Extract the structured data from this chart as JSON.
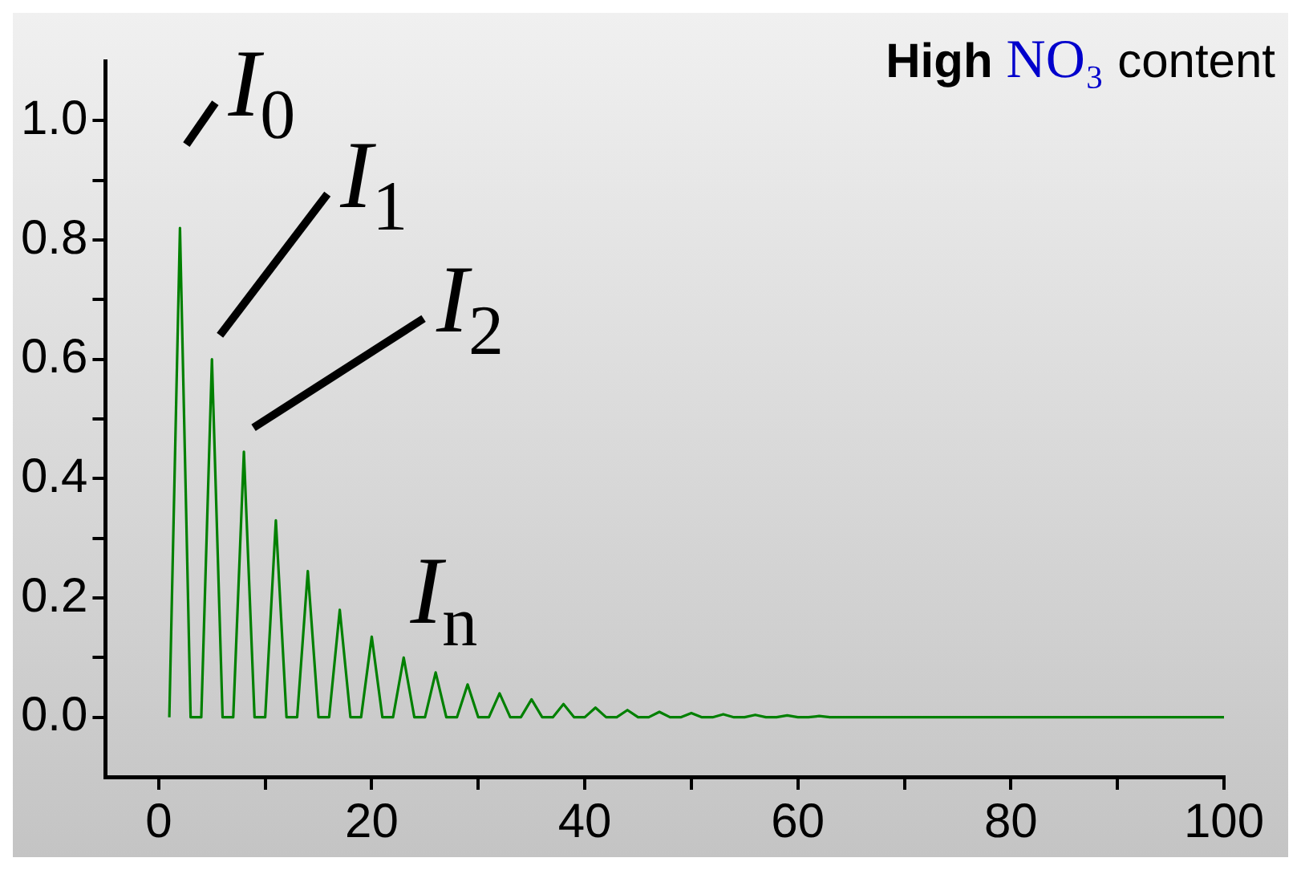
{
  "chart_data": {
    "type": "line",
    "title": "High NO₃ content",
    "annotations": [
      {
        "text": "I$_{0}$",
        "x": 2,
        "y": 0.82
      },
      {
        "text": "I$_{1}$",
        "x": 5,
        "y": 0.6
      },
      {
        "text": "I$_{2}$",
        "x": 8,
        "y": 0.445
      },
      "I$_{n}$"
    ],
    "x": [
      1,
      2,
      3,
      4,
      5,
      6,
      7,
      8,
      9,
      10,
      11,
      12,
      13,
      14,
      15,
      16,
      17,
      18,
      19,
      20,
      21,
      22,
      23,
      24,
      25,
      26,
      27,
      28,
      29,
      30,
      31,
      32,
      33,
      34,
      35,
      36,
      37,
      38,
      39,
      40,
      41,
      42,
      43,
      44,
      45,
      46,
      47,
      48,
      49,
      50,
      51,
      52,
      53,
      54,
      55,
      56,
      57,
      58,
      59,
      60,
      61,
      62,
      63,
      100
    ],
    "series": [
      {
        "color": "#008000",
        "values": [
          0,
          0.82,
          0,
          0,
          0.6,
          0,
          0,
          0.445,
          0,
          0,
          0.33,
          0,
          0,
          0.245,
          0,
          0,
          0.18,
          0,
          0,
          0.135,
          0,
          0,
          0.1,
          0,
          0,
          0.075,
          0,
          0,
          0.055,
          0,
          0,
          0.04,
          0,
          0,
          0.03,
          0,
          0,
          0.022,
          0,
          0,
          0.016,
          0,
          0,
          0.012,
          0,
          0,
          0.009,
          0,
          0,
          0.007,
          0,
          0,
          0.005,
          0,
          0,
          0.004,
          0,
          0,
          0.003,
          0,
          0,
          0.002,
          0,
          0
        ]
      }
    ],
    "xlim": [
      -5,
      100
    ],
    "xticks": [
      0,
      {
        "value": 10,
        "label": null
      },
      20,
      {
        "value": 30,
        "label": null
      },
      40,
      {
        "value": 50,
        "label": null
      },
      60,
      {
        "value": 70,
        "label": null
      },
      80,
      {
        "value": 90,
        "label": null
      },
      100
    ],
    "ylim": [
      -0.1,
      1.1
    ],
    "yticks": [
      {
        "value": 0,
        "label": "0.0"
      },
      {
        "value": 0.1,
        "label": null
      },
      {
        "value": 0.2,
        "label": "0.2"
      },
      {
        "value": 0.3,
        "label": null
      },
      {
        "value": 0.4,
        "label": "0.4"
      },
      {
        "value": 0.5,
        "label": null
      },
      {
        "value": 0.6,
        "label": "0.6"
      },
      {
        "value": 0.7,
        "label": null
      },
      {
        "value": 0.8,
        "label": "0.8"
      },
      {
        "value": 0.9,
        "label": null
      },
      {
        "value": 1,
        "label": "1.0"
      }
    ],
    "grid": false,
    "legend": false,
    "marker": "none",
    "line_style": "solid"
  }
}
